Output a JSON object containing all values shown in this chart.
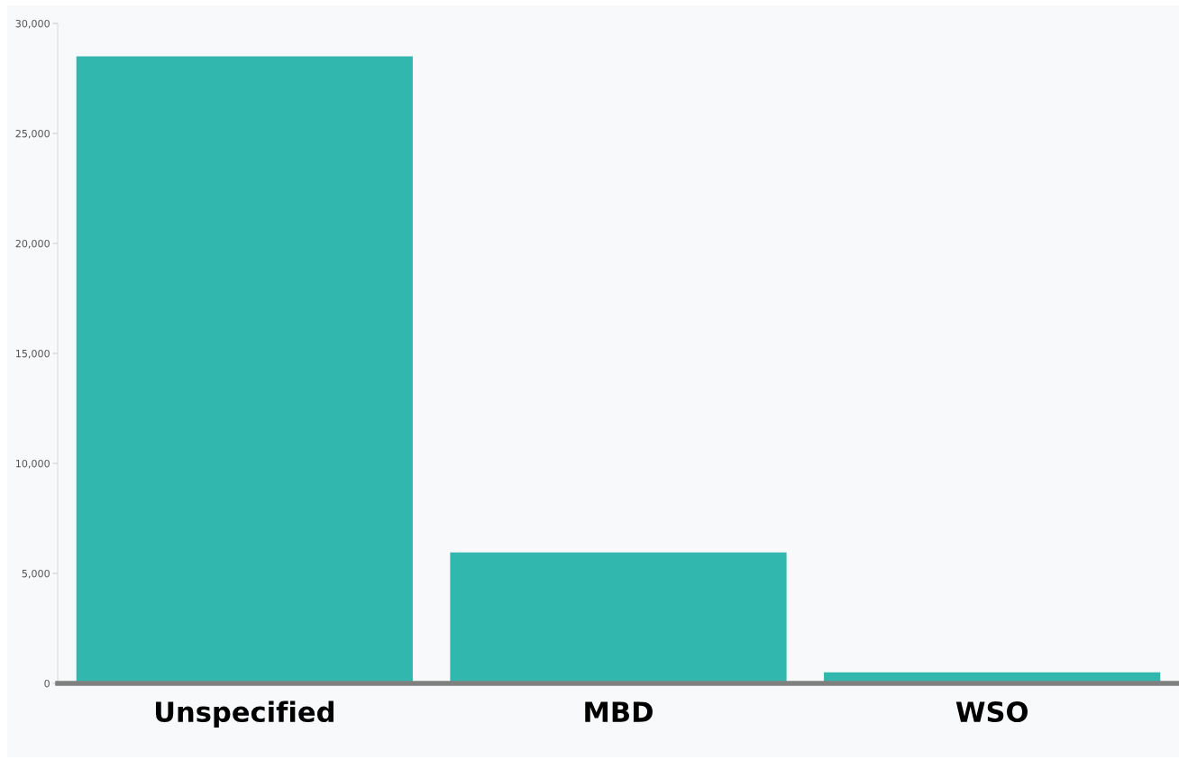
{
  "chart_data": {
    "type": "bar",
    "categories": [
      "Unspecified",
      "MBD",
      "WSO"
    ],
    "values": [
      28500,
      5950,
      500
    ],
    "color": "#32b7ae",
    "ylim": [
      0,
      30000
    ],
    "yticks": [
      {
        "value": 0,
        "label": "0"
      },
      {
        "value": 5000,
        "label": "5,000"
      },
      {
        "value": 10000,
        "label": "10,000"
      },
      {
        "value": 15000,
        "label": "15,000"
      },
      {
        "value": 20000,
        "label": "20,000"
      },
      {
        "value": 25000,
        "label": "25,000"
      },
      {
        "value": 30000,
        "label": "30,000"
      }
    ],
    "grid": false,
    "legend": false
  }
}
